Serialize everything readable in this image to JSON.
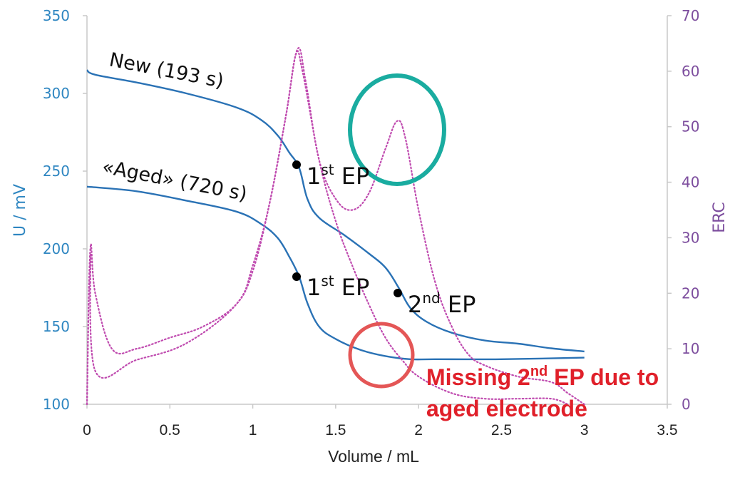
{
  "chart_data": {
    "type": "line",
    "title": "",
    "xlabel": "Volume / mL",
    "ylabel": "U / mV",
    "y2label": "ERC",
    "xlim": [
      0,
      3.5
    ],
    "ylim": [
      100,
      350
    ],
    "y2lim": [
      0,
      70
    ],
    "x_ticks": [
      "0",
      "0.5",
      "1",
      "1.5",
      "2",
      "2.5",
      "3",
      "3.5"
    ],
    "y_ticks": [
      "100",
      "150",
      "200",
      "250",
      "300",
      "350"
    ],
    "y2_ticks": [
      "0",
      "10",
      "20",
      "30",
      "40",
      "50",
      "60",
      "70"
    ],
    "grid": false,
    "legend": "none",
    "series": [
      {
        "name": "New (193 s) - U",
        "axis": "left",
        "style": "solid",
        "color": "#2a72b5",
        "x": [
          0,
          0.05,
          0.3,
          0.6,
          0.9,
          1.05,
          1.15,
          1.22,
          1.28,
          1.33,
          1.4,
          1.55,
          1.7,
          1.8,
          1.88,
          1.95,
          2.05,
          2.2,
          2.4,
          2.6,
          2.8,
          3.0
        ],
        "y": [
          315,
          312,
          307,
          300,
          291,
          283,
          273,
          262,
          252,
          232,
          220,
          209,
          197,
          188,
          175,
          162,
          153,
          146,
          141,
          139,
          136,
          134
        ]
      },
      {
        "name": "«Aged» (720 s) - U",
        "axis": "left",
        "style": "solid",
        "color": "#2a72b5",
        "x": [
          0,
          0.3,
          0.6,
          0.9,
          1.05,
          1.15,
          1.22,
          1.28,
          1.33,
          1.4,
          1.5,
          1.65,
          1.8,
          1.95,
          2.1,
          2.5,
          3.0
        ],
        "y": [
          240,
          237,
          231,
          224,
          216,
          207,
          195,
          182,
          165,
          150,
          142,
          135,
          131,
          129,
          129,
          129,
          130
        ]
      },
      {
        "name": "New (193 s) - ERC",
        "axis": "right",
        "style": "dotted",
        "color": "#c04cb0",
        "x": [
          0,
          0.02,
          0.05,
          0.15,
          0.3,
          0.5,
          0.7,
          0.9,
          1.0,
          1.1,
          1.2,
          1.27,
          1.32,
          1.4,
          1.5,
          1.6,
          1.7,
          1.8,
          1.87,
          1.92,
          2.0,
          2.1,
          2.2,
          2.3,
          2.4,
          2.6,
          2.8,
          2.9,
          3.0
        ],
        "y": [
          0,
          28,
          20,
          10,
          10,
          12,
          14,
          18,
          24,
          36,
          52,
          64,
          58,
          44,
          37,
          35,
          38,
          46,
          51,
          48,
          35,
          22,
          14,
          9,
          7,
          5,
          4,
          2,
          0
        ]
      },
      {
        "name": "«Aged» (720 s) - ERC",
        "axis": "right",
        "style": "dotted",
        "color": "#c04cb0",
        "x": [
          0,
          0.02,
          0.05,
          0.3,
          0.6,
          0.9,
          1.0,
          1.1,
          1.2,
          1.26,
          1.3,
          1.4,
          1.5,
          1.6,
          1.7,
          1.8,
          1.9,
          2.0,
          2.2,
          2.4,
          2.6,
          2.8,
          2.9
        ],
        "y": [
          0,
          27,
          6,
          8,
          11,
          18,
          25,
          36,
          52,
          63,
          60,
          44,
          33,
          25,
          18,
          12,
          8,
          5,
          2,
          1,
          1,
          1,
          0
        ]
      }
    ],
    "annotations": {
      "new_label": "New (193 s)",
      "aged_label": "«Aged» (720 s)",
      "ep_points": [
        {
          "curve": "New",
          "label_main": "1",
          "label_sup": "st",
          "label_tail": " EP",
          "x": 1.28,
          "y": 253
        },
        {
          "curve": "Aged",
          "label_main": "1",
          "label_sup": "st",
          "label_tail": " EP",
          "x": 1.28,
          "y": 182
        },
        {
          "curve": "New",
          "label_main": "2",
          "label_sup": "nd",
          "label_tail": " EP",
          "x": 1.88,
          "y": 171
        }
      ],
      "warning": {
        "line1_pre": "Missing 2",
        "line1_sup": "nd",
        "line1_post": " EP due to",
        "line2": "aged electrode",
        "color": "#e0202a"
      },
      "highlight_circles": [
        {
          "meaning": "second ERC peak (new electrode)",
          "color": "#1aaca0"
        },
        {
          "meaning": "missing second EP (aged electrode)",
          "color": "#e45656"
        }
      ]
    }
  },
  "colors": {
    "left_axis": "#2e86c1",
    "right_axis": "#7d4e9e",
    "curve": "#2a72b5",
    "erc": "#c04cb0",
    "axis_line": "#c8c8c8"
  }
}
